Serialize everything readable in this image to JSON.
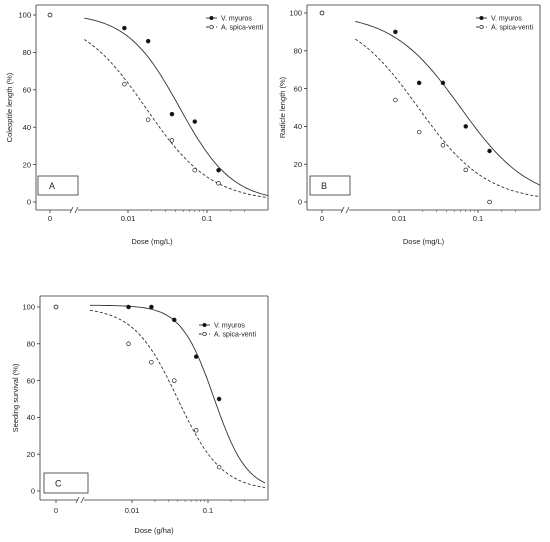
{
  "chart_data": [
    {
      "type": "scatter",
      "panel_label": "A",
      "xlabel": "Dose (mg/L)",
      "ylabel": "Coleoptile length (%)",
      "x_scale": "log",
      "x_ticks": [
        "0",
        "0.01",
        "0.1"
      ],
      "y_ticks": [
        "0",
        "20",
        "40",
        "60",
        "80",
        "100"
      ],
      "ylim": [
        0,
        100
      ],
      "legend_position": "top-right",
      "series": [
        {
          "name": "V. myuros",
          "marker": "filled-circle",
          "line": "solid",
          "points": [
            {
              "x": "0",
              "y": 100
            },
            {
              "x": 0.009,
              "y": 93
            },
            {
              "x": 0.018,
              "y": 86
            },
            {
              "x": 0.036,
              "y": 47
            },
            {
              "x": 0.07,
              "y": 43
            },
            {
              "x": 0.14,
              "y": 17
            }
          ],
          "curve": {
            "top": 101,
            "x50": 0.045,
            "slope": 1.3
          }
        },
        {
          "name": "A. spica-venti",
          "marker": "open-circle",
          "line": "dashed",
          "points": [
            {
              "x": "0",
              "y": 100
            },
            {
              "x": 0.009,
              "y": 63
            },
            {
              "x": 0.018,
              "y": 44
            },
            {
              "x": 0.036,
              "y": 33
            },
            {
              "x": 0.07,
              "y": 17
            },
            {
              "x": 0.14,
              "y": 10
            }
          ],
          "curve": {
            "top": 100,
            "x50": 0.017,
            "slope": 1.05
          }
        }
      ]
    },
    {
      "type": "scatter",
      "panel_label": "B",
      "xlabel": "Dose (mg/L)",
      "ylabel": "Radicle length (%)",
      "x_scale": "log",
      "x_ticks": [
        "0",
        "0.01",
        "0.1"
      ],
      "y_ticks": [
        "0",
        "20",
        "40",
        "60",
        "80",
        "100"
      ],
      "ylim": [
        0,
        100
      ],
      "legend_position": "top-right",
      "series": [
        {
          "name": "V. myuros",
          "marker": "filled-circle",
          "line": "solid",
          "points": [
            {
              "x": "0",
              "y": 100
            },
            {
              "x": 0.009,
              "y": 90
            },
            {
              "x": 0.018,
              "y": 63
            },
            {
              "x": 0.036,
              "y": 63
            },
            {
              "x": 0.07,
              "y": 40
            },
            {
              "x": 0.14,
              "y": 27
            }
          ],
          "curve": {
            "top": 100,
            "x50": 0.06,
            "slope": 1.0
          }
        },
        {
          "name": "A. spica-venti",
          "marker": "open-circle",
          "line": "dashed",
          "points": [
            {
              "x": "0",
              "y": 100
            },
            {
              "x": 0.009,
              "y": 54
            },
            {
              "x": 0.018,
              "y": 37
            },
            {
              "x": 0.036,
              "y": 30
            },
            {
              "x": 0.07,
              "y": 17
            },
            {
              "x": 0.14,
              "y": 0
            }
          ],
          "curve": {
            "top": 100,
            "x50": 0.0175,
            "slope": 1.0
          }
        }
      ]
    },
    {
      "type": "scatter",
      "panel_label": "C",
      "xlabel": "Dose (g/ha)",
      "ylabel": "Seeding survival (%)",
      "x_scale": "log",
      "x_ticks": [
        "0",
        "0.01",
        "0.1"
      ],
      "y_ticks": [
        "0",
        "20",
        "40",
        "60",
        "80",
        "100"
      ],
      "ylim": [
        0,
        100
      ],
      "legend_position": "top-right",
      "series": [
        {
          "name": "V. myuros",
          "marker": "filled-circle",
          "line": "solid",
          "points": [
            {
              "x": "0",
              "y": 100
            },
            {
              "x": 0.009,
              "y": 100
            },
            {
              "x": 0.018,
              "y": 100
            },
            {
              "x": 0.036,
              "y": 93
            },
            {
              "x": 0.07,
              "y": 73
            },
            {
              "x": 0.14,
              "y": 50
            }
          ],
          "curve": {
            "top": 101,
            "x50": 0.12,
            "slope": 2.0
          }
        },
        {
          "name": "A. spica-venti",
          "marker": "open-circle",
          "line": "dashed",
          "points": [
            {
              "x": "0",
              "y": 100
            },
            {
              "x": 0.009,
              "y": 80
            },
            {
              "x": 0.018,
              "y": 70
            },
            {
              "x": 0.036,
              "y": 60
            },
            {
              "x": 0.07,
              "y": 33
            },
            {
              "x": 0.14,
              "y": 13
            }
          ],
          "curve": {
            "top": 100,
            "x50": 0.04,
            "slope": 1.5
          }
        }
      ]
    }
  ]
}
